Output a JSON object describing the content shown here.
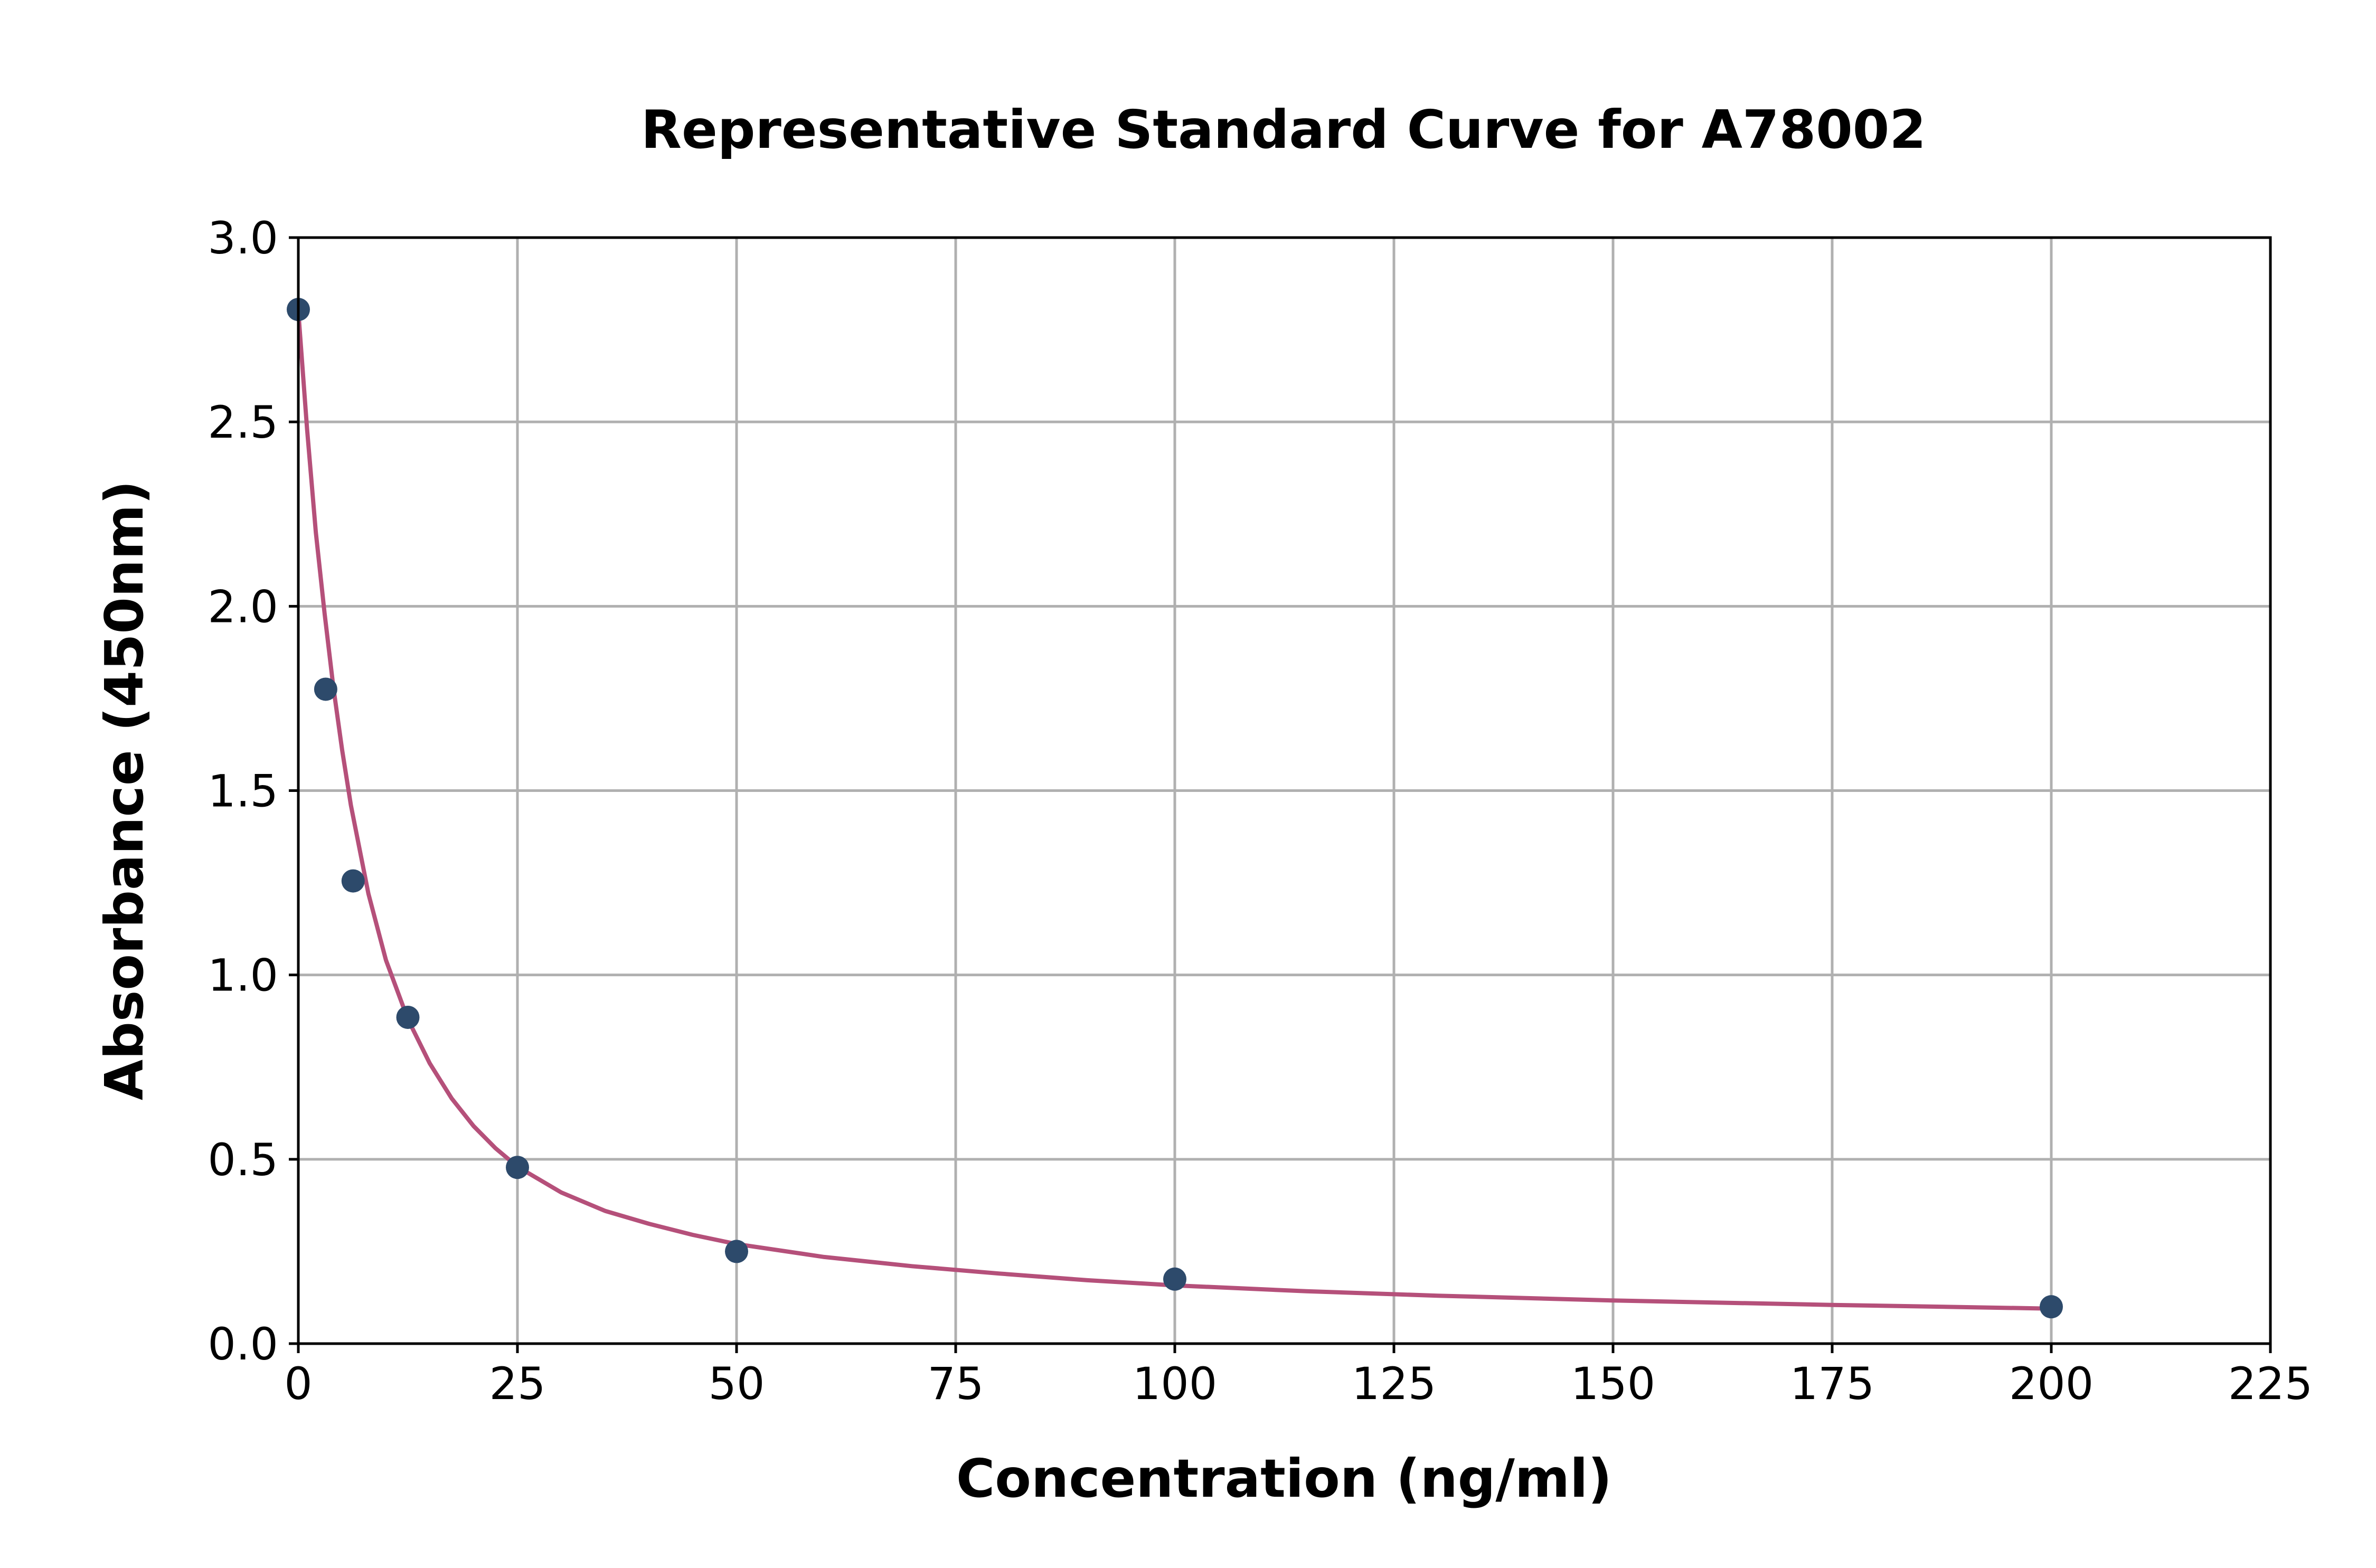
{
  "chart_data": {
    "type": "scatter",
    "title": "Representative Standard Curve for A78002",
    "xlabel": "Concentration (ng/ml)",
    "ylabel": "Absorbance (450nm)",
    "xlim": [
      0,
      225
    ],
    "ylim": [
      0,
      3.0
    ],
    "xticks": [
      0,
      25,
      50,
      75,
      100,
      125,
      150,
      175,
      200,
      225
    ],
    "xtick_labels": [
      "0",
      "25",
      "50",
      "75",
      "100",
      "125",
      "150",
      "175",
      "200",
      "225"
    ],
    "yticks": [
      0,
      0.5,
      1.0,
      1.5,
      2.0,
      2.5,
      3.0
    ],
    "ytick_labels": [
      "0.0",
      "0.5",
      "1.0",
      "1.5",
      "2.0",
      "2.5",
      "3.0"
    ],
    "grid": true,
    "series": [
      {
        "type": "scatter",
        "color": "#2d4a6b",
        "x": [
          0,
          3.125,
          6.25,
          12.5,
          25,
          50,
          100,
          200
        ],
        "y": [
          2.805,
          1.775,
          1.255,
          0.885,
          0.478,
          0.25,
          0.175,
          0.1
        ]
      },
      {
        "type": "line",
        "color": "#b5507a",
        "x": [
          0,
          1,
          2,
          3,
          4,
          5,
          6,
          8,
          10,
          12.5,
          15,
          17.5,
          20,
          22.5,
          25,
          30,
          35,
          40,
          45,
          50,
          60,
          70,
          80,
          90,
          100,
          115,
          130,
          150,
          175,
          200
        ],
        "y": [
          2.8,
          2.48,
          2.2,
          1.98,
          1.78,
          1.61,
          1.46,
          1.22,
          1.04,
          0.88,
          0.76,
          0.665,
          0.59,
          0.53,
          0.48,
          0.41,
          0.36,
          0.325,
          0.295,
          0.27,
          0.235,
          0.21,
          0.19,
          0.172,
          0.158,
          0.142,
          0.13,
          0.117,
          0.105,
          0.095
        ]
      }
    ]
  }
}
